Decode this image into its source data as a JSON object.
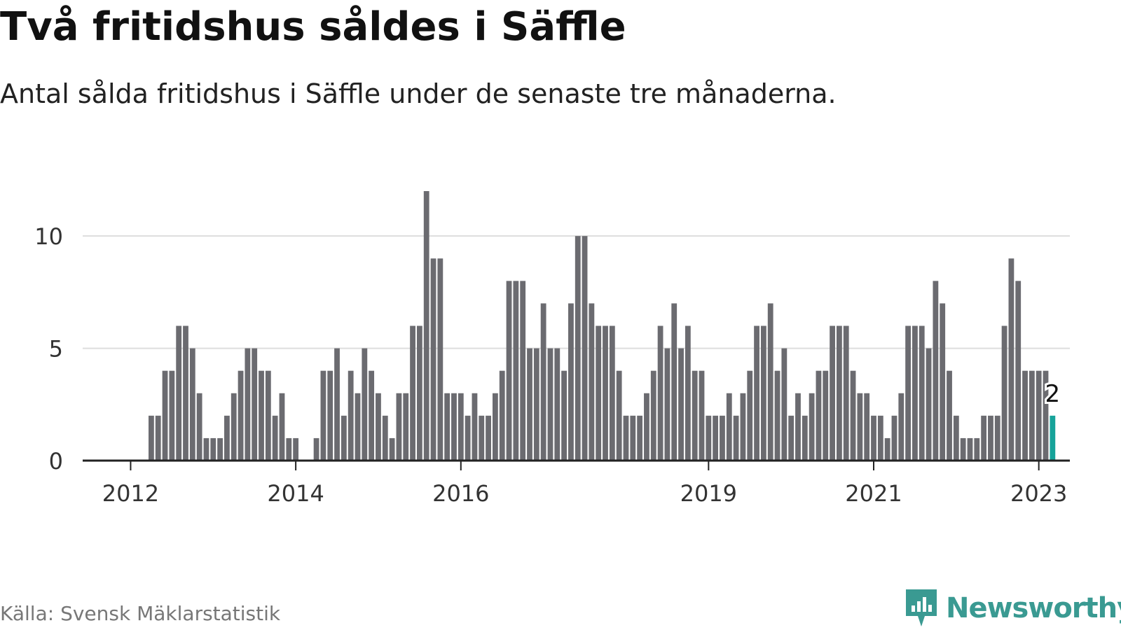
{
  "title": "Två fritidshus såldes i Säffle",
  "subtitle": "Antal sålda fritidshus i Säffle under de senaste tre månaderna.",
  "source": "Källa: Svensk Mäklarstatistik",
  "brand": "Newsworthy",
  "colors": {
    "bar": "#6b6b70",
    "highlight": "#17a39a",
    "grid": "#dddddd",
    "axis": "#222222",
    "brand": "#3a9a92"
  },
  "chart_data": {
    "type": "bar",
    "grid": true,
    "ylim": [
      0,
      12
    ],
    "yticks": [
      0,
      5,
      10
    ],
    "x_tick_labels": [
      "2012",
      "2014",
      "2016",
      "2019",
      "2021",
      "2023"
    ],
    "first_bar_month": "2011-06",
    "values": [
      0,
      0,
      0,
      0,
      0,
      0,
      0,
      0,
      0,
      0,
      2,
      2,
      4,
      4,
      6,
      6,
      5,
      3,
      1,
      1,
      1,
      2,
      3,
      4,
      5,
      5,
      4,
      4,
      2,
      3,
      1,
      1,
      0,
      0,
      1,
      4,
      4,
      5,
      2,
      4,
      3,
      5,
      4,
      3,
      2,
      1,
      3,
      3,
      6,
      6,
      12,
      9,
      9,
      3,
      3,
      3,
      2,
      3,
      2,
      2,
      3,
      4,
      8,
      8,
      8,
      5,
      5,
      7,
      5,
      5,
      4,
      7,
      10,
      10,
      7,
      6,
      6,
      6,
      4,
      2,
      2,
      2,
      3,
      4,
      6,
      5,
      7,
      5,
      6,
      4,
      4,
      2,
      2,
      2,
      3,
      2,
      3,
      4,
      6,
      6,
      7,
      4,
      5,
      2,
      3,
      2,
      3,
      4,
      4,
      6,
      6,
      6,
      4,
      3,
      3,
      2,
      2,
      1,
      2,
      3,
      6,
      6,
      6,
      5,
      8,
      7,
      4,
      2,
      1,
      1,
      1,
      2,
      2,
      2,
      6,
      9,
      8,
      4,
      4,
      4,
      4,
      2
    ],
    "highlight_label": "2"
  }
}
